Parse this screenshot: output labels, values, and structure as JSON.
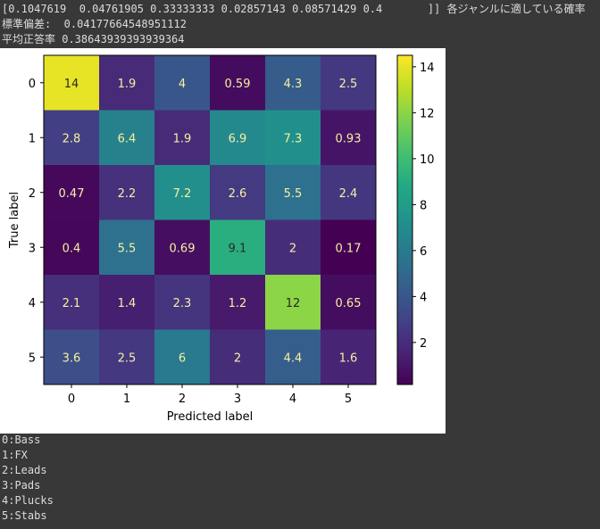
{
  "console": {
    "probs_line": "[0.1047619  0.04761905 0.33333333 0.02857143 0.08571429 0.4       ]] 各ジャンルに適している確率",
    "std_line": "標準偏差:  0.04177664548951112",
    "acc_line": "平均正答率 0.38643939393939364",
    "legend_lines": [
      "0:Bass",
      "1:FX",
      "2:Leads",
      "3:Pads",
      "4:Plucks",
      "5:Stabs"
    ]
  },
  "chart_data": {
    "type": "heatmap",
    "title": "",
    "xlabel": "Predicted label",
    "ylabel": "True label",
    "x_categories": [
      "0",
      "1",
      "2",
      "3",
      "4",
      "5"
    ],
    "y_categories": [
      "0",
      "1",
      "2",
      "3",
      "4",
      "5"
    ],
    "values": [
      [
        14,
        1.9,
        4,
        0.59,
        4.3,
        2.5
      ],
      [
        2.8,
        6.4,
        1.9,
        6.9,
        7.3,
        0.93
      ],
      [
        0.47,
        2.2,
        7.2,
        2.6,
        5.5,
        2.4
      ],
      [
        0.4,
        5.5,
        0.69,
        9.1,
        2,
        0.17
      ],
      [
        2.1,
        1.4,
        2.3,
        1.2,
        12,
        0.65
      ],
      [
        3.6,
        2.5,
        6,
        2,
        4.4,
        1.6
      ]
    ],
    "labels": [
      [
        "14",
        "1.9",
        "4",
        "0.59",
        "4.3",
        "2.5"
      ],
      [
        "2.8",
        "6.4",
        "1.9",
        "6.9",
        "7.3",
        "0.93"
      ],
      [
        "0.47",
        "2.2",
        "7.2",
        "2.6",
        "5.5",
        "2.4"
      ],
      [
        "0.4",
        "5.5",
        "0.69",
        "9.1",
        "2",
        "0.17"
      ],
      [
        "2.1",
        "1.4",
        "2.3",
        "1.2",
        "12",
        "0.65"
      ],
      [
        "3.6",
        "2.5",
        "6",
        "2",
        "4.4",
        "1.6"
      ]
    ],
    "colormap": "viridis",
    "colorbar_ticks": [
      "2",
      "4",
      "6",
      "8",
      "10",
      "12",
      "14"
    ],
    "colorbar_range": [
      0.17,
      14.5
    ],
    "grid": false
  }
}
